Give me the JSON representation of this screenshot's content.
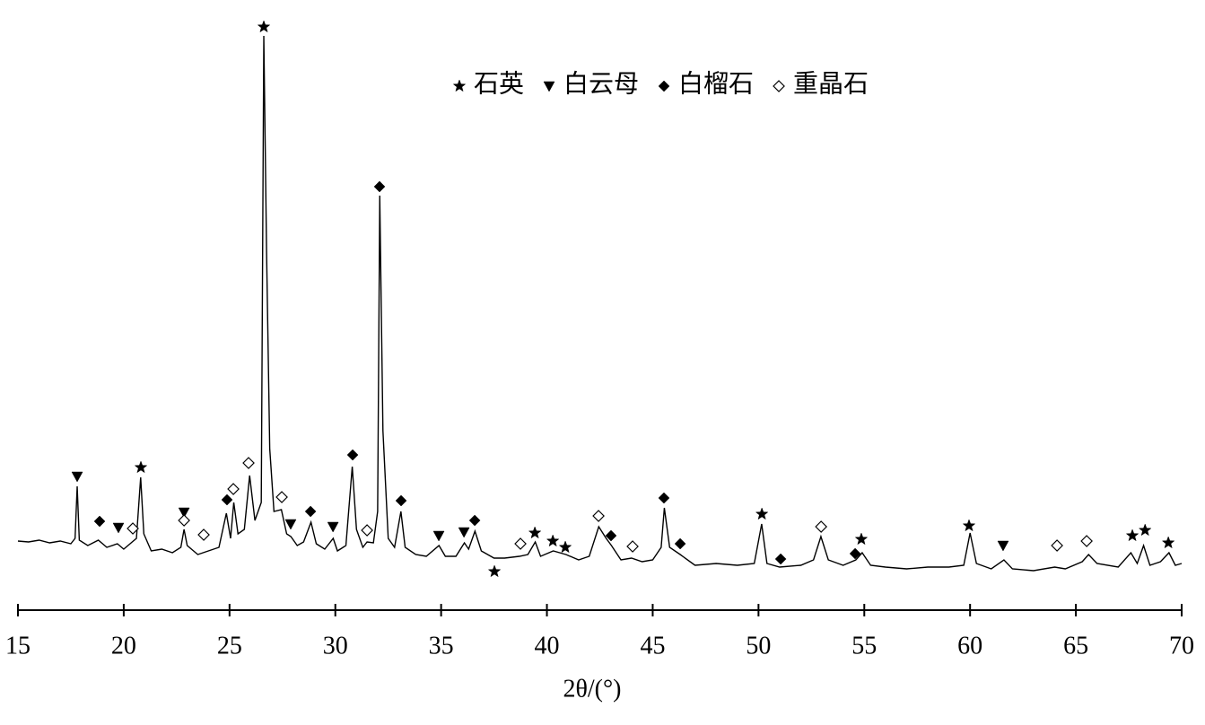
{
  "chart_data": {
    "type": "line",
    "x_label": "2θ/(°)",
    "xlim": [
      15,
      70
    ],
    "xticks": [
      15,
      20,
      25,
      30,
      35,
      40,
      45,
      50,
      55,
      60,
      65,
      70
    ],
    "ylim": [
      0,
      680
    ],
    "color": "#000000",
    "x": [
      15,
      15.5,
      16,
      16.5,
      17,
      17.5,
      17.7,
      17.8,
      17.9,
      18.3,
      18.8,
      19.2,
      19.7,
      20.0,
      20.4,
      20.6,
      20.8,
      20.95,
      21.3,
      21.8,
      22.3,
      22.7,
      22.85,
      23.0,
      23.5,
      24.0,
      24.5,
      24.85,
      25.05,
      25.2,
      25.4,
      25.7,
      25.95,
      26.2,
      26.5,
      26.62,
      26.75,
      26.9,
      27.1,
      27.45,
      27.7,
      27.9,
      28.2,
      28.5,
      28.85,
      29.1,
      29.5,
      29.9,
      30.1,
      30.5,
      30.8,
      31.0,
      31.3,
      31.5,
      31.8,
      32.0,
      32.1,
      32.25,
      32.5,
      32.8,
      33.1,
      33.3,
      33.8,
      34.3,
      34.9,
      35.2,
      35.7,
      36.1,
      36.3,
      36.6,
      36.9,
      37.5,
      38.0,
      38.7,
      39.1,
      39.45,
      39.7,
      40.3,
      40.9,
      41.5,
      42.0,
      42.45,
      42.8,
      43.05,
      43.5,
      44.0,
      44.5,
      45.0,
      45.4,
      45.55,
      45.8,
      46.3,
      47.0,
      48.0,
      49.0,
      49.8,
      50.15,
      50.4,
      51.0,
      52.0,
      52.6,
      52.95,
      53.3,
      54.0,
      54.6,
      54.9,
      55.3,
      56.0,
      57.0,
      58.0,
      59.0,
      59.7,
      60.0,
      60.3,
      61.0,
      61.6,
      62.0,
      63.0,
      64.0,
      64.5,
      65.3,
      65.6,
      66.0,
      67.0,
      67.6,
      67.9,
      68.2,
      68.5,
      69.0,
      69.4,
      69.7,
      70
    ],
    "values": [
      77,
      76,
      78,
      75,
      77,
      74,
      80,
      138,
      78,
      72,
      78,
      70,
      74,
      68,
      76,
      80,
      148,
      85,
      66,
      68,
      64,
      70,
      90,
      72,
      62,
      66,
      70,
      108,
      80,
      120,
      85,
      90,
      150,
      100,
      120,
      640,
      400,
      180,
      110,
      112,
      85,
      82,
      72,
      76,
      98,
      74,
      68,
      80,
      66,
      72,
      160,
      90,
      70,
      76,
      75,
      110,
      462,
      200,
      80,
      70,
      110,
      70,
      62,
      60,
      72,
      60,
      60,
      75,
      68,
      88,
      66,
      58,
      58,
      60,
      62,
      76,
      60,
      66,
      62,
      56,
      60,
      93,
      80,
      72,
      56,
      58,
      54,
      56,
      70,
      114,
      70,
      62,
      50,
      52,
      50,
      52,
      96,
      52,
      48,
      50,
      56,
      82,
      56,
      50,
      56,
      64,
      50,
      48,
      46,
      48,
      48,
      50,
      86,
      52,
      46,
      56,
      46,
      44,
      48,
      46,
      54,
      62,
      52,
      48,
      64,
      52,
      72,
      50,
      54,
      64,
      50,
      52
    ],
    "phases": [
      {
        "name": "石英",
        "symbol": "star",
        "x": [
          26.62,
          20.81,
          37.52,
          39.43,
          40.28,
          40.87,
          50.16,
          54.86,
          59.95,
          67.67,
          68.27,
          69.37
        ],
        "y": [
          650,
          159,
          43,
          86,
          77,
          70,
          107,
          79,
          94,
          83,
          89,
          75
        ]
      },
      {
        "name": "白云母",
        "symbol": "triangle",
        "x": [
          17.8,
          19.75,
          22.85,
          27.89,
          29.89,
          34.89,
          36.08,
          61.56
        ],
        "y": [
          149,
          92,
          109,
          96,
          93,
          83,
          87,
          72
        ]
      },
      {
        "name": "白榴石",
        "symbol": "diamond",
        "x": [
          18.86,
          24.88,
          28.83,
          30.82,
          32.09,
          33.11,
          36.59,
          43.03,
          45.53,
          46.3,
          51.05,
          54.57
        ],
        "y": [
          99,
          123,
          110,
          173,
          472,
          122,
          100,
          83,
          125,
          74,
          57,
          63
        ]
      },
      {
        "name": "重晶石",
        "symbol": "diamond-open",
        "x": [
          20.43,
          22.85,
          23.78,
          25.18,
          25.9,
          27.47,
          31.5,
          38.75,
          42.44,
          44.05,
          52.96,
          64.11,
          65.51
        ],
        "y": [
          91,
          100,
          84,
          135,
          164,
          126,
          89,
          74,
          105,
          71,
          93,
          72,
          77
        ]
      }
    ]
  }
}
